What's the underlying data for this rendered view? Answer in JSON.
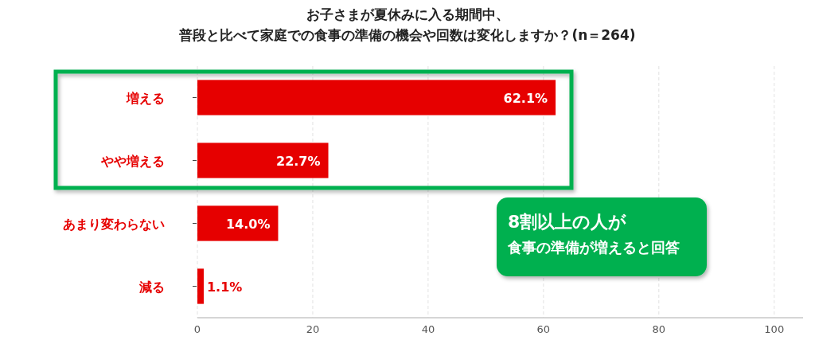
{
  "chart_data": {
    "type": "bar",
    "orientation": "horizontal",
    "title": "お子さまが夏休みに入る期間中、",
    "subtitle": "普段と比べて家庭での食事の準備の機会や回数は変化しますか？(n＝264)",
    "categories": [
      "増える",
      "やや増える",
      "あまり変わらない",
      "減る"
    ],
    "values": [
      62.1,
      22.7,
      14.0,
      1.1
    ],
    "value_labels": [
      "62.1%",
      "22.7%",
      "14.0%",
      "1.1%"
    ],
    "color": "#e60000",
    "xlim": [
      0,
      105
    ],
    "xticks": [
      0,
      20,
      40,
      60,
      80,
      100
    ],
    "grid": "x",
    "annotations": [
      "8割以上の人が",
      "食事の準備が増えると回答"
    ]
  }
}
